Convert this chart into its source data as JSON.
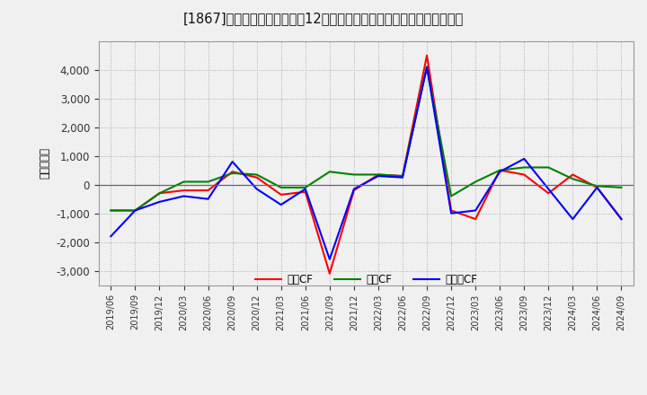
{
  "title": "[1867]　キャッシュフローの12か月移動合計の対前年同期増減額の推移",
  "ylabel": "（百万円）",
  "background_color": "#f0f0f0",
  "plot_background": "#f0f0f0",
  "grid_color": "#aaaaaa",
  "x_labels": [
    "2019/06",
    "2019/09",
    "2019/12",
    "2020/03",
    "2020/06",
    "2020/09",
    "2020/12",
    "2021/03",
    "2021/06",
    "2021/09",
    "2021/12",
    "2022/03",
    "2022/06",
    "2022/09",
    "2022/12",
    "2023/03",
    "2023/06",
    "2023/09",
    "2023/12",
    "2024/03",
    "2024/06",
    "2024/09"
  ],
  "operating_cf": [
    -900,
    -900,
    -300,
    -200,
    -200,
    450,
    250,
    -350,
    -250,
    -3100,
    -200,
    350,
    300,
    4500,
    -900,
    -1200,
    500,
    350,
    -300,
    350,
    -100,
    -1200
  ],
  "investing_cf": [
    -900,
    -900,
    -300,
    100,
    100,
    400,
    350,
    -100,
    -100,
    450,
    350,
    350,
    300,
    4100,
    -400,
    100,
    500,
    600,
    600,
    200,
    -50,
    -100
  ],
  "free_cf": [
    -1800,
    -900,
    -600,
    -400,
    -500,
    800,
    -150,
    -700,
    -150,
    -2600,
    -150,
    300,
    250,
    4100,
    -1000,
    -900,
    450,
    900,
    -150,
    -1200,
    -100,
    -1200
  ],
  "ylim": [
    -3500,
    5000
  ],
  "yticks": [
    -3000,
    -2000,
    -1000,
    0,
    1000,
    2000,
    3000,
    4000
  ],
  "line_colors": {
    "operating": "#ff0000",
    "investing": "#008000",
    "free": "#0000ff"
  },
  "legend_labels": {
    "operating": "営業CF",
    "investing": "投資CF",
    "free": "フリーCF"
  }
}
